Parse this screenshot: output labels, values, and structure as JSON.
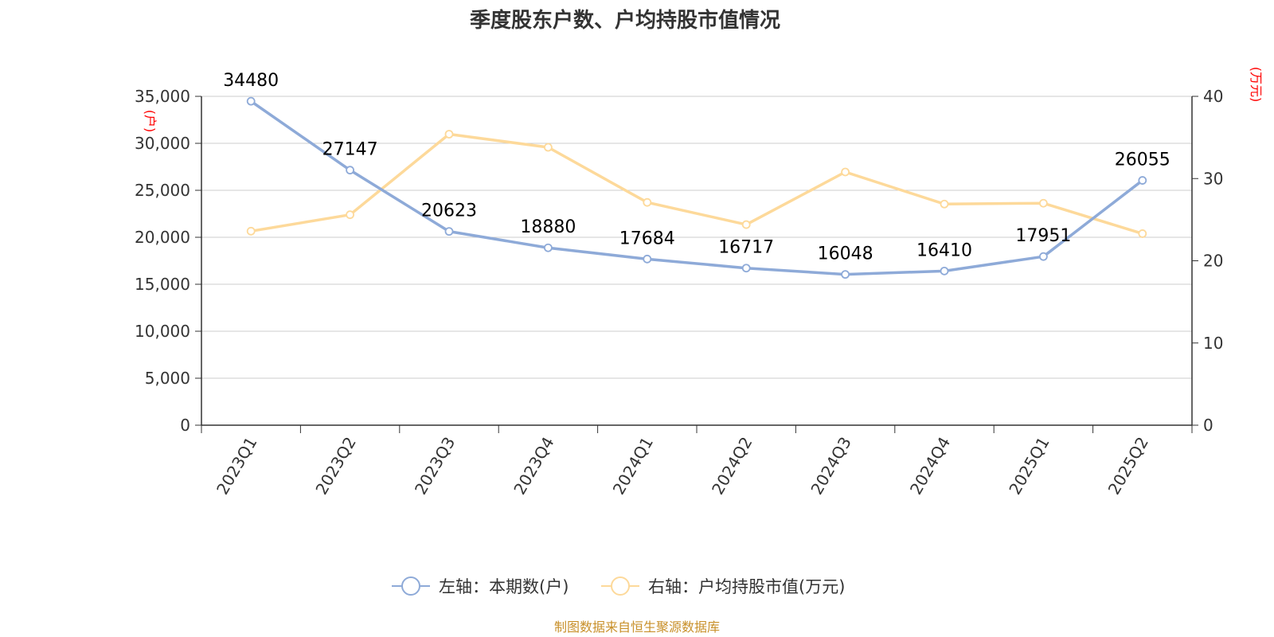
{
  "title": "季度股东户数、户均持股市值情况",
  "source": "制图数据来自恒生聚源数据库",
  "colors": {
    "left": "#8eaad8",
    "right": "#fdd99a",
    "grid": "#cccccc",
    "axis": "#333333",
    "unit": "#ff0000"
  },
  "chart_data": {
    "type": "line",
    "title": "季度股东户数、户均持股市值情况",
    "categories": [
      "2023Q1",
      "2023Q2",
      "2023Q3",
      "2023Q4",
      "2024Q1",
      "2024Q2",
      "2024Q3",
      "2024Q4",
      "2025Q1",
      "2025Q2"
    ],
    "left_axis": {
      "unit": "(户)",
      "ylim": [
        0,
        35000
      ],
      "ticks": [
        "0",
        "5,000",
        "10,000",
        "15,000",
        "20,000",
        "25,000",
        "30,000",
        "35,000"
      ]
    },
    "right_axis": {
      "unit": "(万元)",
      "ylim": [
        0,
        40
      ],
      "ticks": [
        "0",
        "10",
        "20",
        "30",
        "40"
      ]
    },
    "grid": true,
    "legend_position": "bottom",
    "series": [
      {
        "name": "左轴：本期数(户)",
        "axis": "left",
        "values": [
          34480,
          27147,
          20623,
          18880,
          17684,
          16717,
          16048,
          16410,
          17951,
          26055
        ],
        "labels": [
          "34480",
          "27147",
          "20623",
          "18880",
          "17684",
          "16717",
          "16048",
          "16410",
          "17951",
          "26055"
        ]
      },
      {
        "name": "右轴：户均持股市值(万元)",
        "axis": "right",
        "values": [
          23.6,
          25.6,
          35.4,
          33.8,
          27.1,
          24.4,
          30.8,
          26.9,
          27.0,
          23.3
        ]
      }
    ]
  }
}
